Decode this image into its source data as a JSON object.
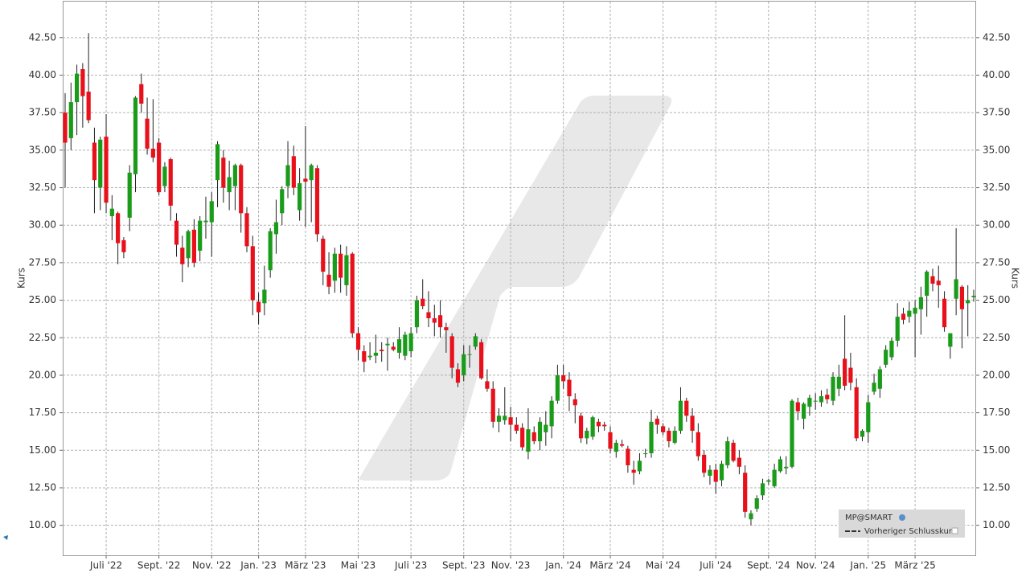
{
  "chart_data": {
    "type": "candlestick",
    "y_label": "Kurs",
    "ylim": [
      8,
      44.9
    ],
    "yticks": [
      {
        "value": 10,
        "label": "10.00"
      },
      {
        "value": 12.5,
        "label": "12.50"
      },
      {
        "value": 15,
        "label": "15.00"
      },
      {
        "value": 17.5,
        "label": "17.50"
      },
      {
        "value": 20,
        "label": "20.00"
      },
      {
        "value": 22.5,
        "label": "22.50"
      },
      {
        "value": 25,
        "label": "25.00"
      },
      {
        "value": 27.5,
        "label": "27.50"
      },
      {
        "value": 30,
        "label": "30.00"
      },
      {
        "value": 32.5,
        "label": "32.50"
      },
      {
        "value": 35,
        "label": "35.00"
      },
      {
        "value": 37.5,
        "label": "37.50"
      },
      {
        "value": 40,
        "label": "40.00"
      },
      {
        "value": 42.5,
        "label": "42.50"
      }
    ],
    "grid": true,
    "up_color": "#1a9c1a",
    "down_color": "#e8111b",
    "legend": {
      "position": "lower right",
      "entries": [
        "MP@SMART",
        "Vorheriger Schlusskurs"
      ]
    },
    "categories": [
      null,
      null,
      null,
      null,
      null,
      null,
      null,
      "Juli '22",
      null,
      null,
      null,
      null,
      null,
      null,
      null,
      null,
      "Sept. '22",
      null,
      null,
      null,
      null,
      null,
      null,
      null,
      null,
      "Nov. '22",
      null,
      null,
      null,
      null,
      null,
      null,
      null,
      "Jan. '23",
      null,
      null,
      null,
      null,
      null,
      null,
      null,
      "März '23",
      null,
      null,
      null,
      null,
      null,
      null,
      null,
      null,
      "Mai '23",
      null,
      null,
      null,
      null,
      null,
      null,
      null,
      null,
      "Juli '23",
      null,
      null,
      null,
      null,
      null,
      null,
      null,
      null,
      "Sept. '23",
      null,
      null,
      null,
      null,
      null,
      null,
      null,
      "Nov. '23",
      null,
      null,
      null,
      null,
      null,
      null,
      null,
      null,
      "Jan. '24",
      null,
      null,
      null,
      null,
      null,
      null,
      null,
      "März '24",
      null,
      null,
      null,
      null,
      null,
      null,
      null,
      null,
      "Mai '24",
      null,
      null,
      null,
      null,
      null,
      null,
      null,
      null,
      "Juli '24",
      null,
      null,
      null,
      null,
      null,
      null,
      null,
      null,
      "Sept. '24",
      null,
      null,
      null,
      null,
      null,
      null,
      null,
      "Nov. '24",
      null,
      null,
      null,
      null,
      null,
      null,
      null,
      null,
      "Jan. '25",
      null,
      null,
      null,
      null,
      null,
      null,
      null,
      "März '25",
      null,
      null,
      null,
      null,
      null,
      null,
      null,
      null,
      null,
      null
    ],
    "ohlc": [
      [
        37.5,
        38.8,
        32.5,
        35.5
      ],
      [
        35.8,
        39.5,
        35,
        38.2
      ],
      [
        38.2,
        40.7,
        36,
        40.1
      ],
      [
        40.4,
        40.8,
        36.5,
        38.6
      ],
      [
        38.9,
        42.8,
        36.8,
        37
      ],
      [
        35.5,
        36.5,
        30.8,
        33
      ],
      [
        32.5,
        35.9,
        31,
        35.7
      ],
      [
        35.9,
        37.4,
        30.8,
        31.5
      ],
      [
        30.6,
        32,
        29,
        31.1
      ],
      [
        30.8,
        30.9,
        27.4,
        28.8
      ],
      [
        29,
        29.2,
        27.8,
        28.2
      ],
      [
        30.5,
        34,
        29.6,
        33.5
      ],
      [
        33.4,
        38.6,
        32.2,
        38.5
      ],
      [
        39.4,
        40.1,
        37.5,
        38.1
      ],
      [
        37.1,
        38.5,
        34.7,
        35.1
      ],
      [
        35.1,
        38.4,
        34.2,
        34.5
      ],
      [
        35.5,
        35.8,
        32,
        32.2
      ],
      [
        32.6,
        34.2,
        32.2,
        33.9
      ],
      [
        34.4,
        34.5,
        30.3,
        31.3
      ],
      [
        30.3,
        30.8,
        27.9,
        28.7
      ],
      [
        28.5,
        29.3,
        26.2,
        27.4
      ],
      [
        27.8,
        29.7,
        27.2,
        29.6
      ],
      [
        29.7,
        30.4,
        27.2,
        27.5
      ],
      [
        28.3,
        30.6,
        27.6,
        30.3
      ],
      [
        30.2,
        31.9,
        29.1,
        30.3
      ],
      [
        30.2,
        32.2,
        27.9,
        31.6
      ],
      [
        33,
        35.6,
        31.2,
        35.4
      ],
      [
        34.5,
        35,
        31.5,
        32.5
      ],
      [
        32.2,
        34.3,
        31,
        33.2
      ],
      [
        32.6,
        34.1,
        31,
        34
      ],
      [
        34,
        34.1,
        29.5,
        30.8
      ],
      [
        30.8,
        31.2,
        28.2,
        28.6
      ],
      [
        28.6,
        29.3,
        24,
        25
      ],
      [
        24.9,
        25.5,
        23.4,
        24.2
      ],
      [
        24.8,
        27.3,
        24,
        25.7
      ],
      [
        27,
        29.8,
        26.5,
        29.6
      ],
      [
        29.4,
        31.7,
        28.1,
        30.2
      ],
      [
        30.8,
        32.6,
        30,
        32.4
      ],
      [
        32.6,
        35.6,
        31.8,
        34
      ],
      [
        34.6,
        35.3,
        32,
        32.5
      ],
      [
        31,
        33.8,
        30.3,
        32.8
      ],
      [
        33.1,
        36.6,
        29.9,
        32.9
      ],
      [
        33,
        34.1,
        30.2,
        34
      ],
      [
        33.8,
        34,
        28.9,
        29.4
      ],
      [
        29.1,
        29.3,
        26,
        26.9
      ],
      [
        26.7,
        28.2,
        25.4,
        25.9
      ],
      [
        26.3,
        28.5,
        25.5,
        28.1
      ],
      [
        28.1,
        28.7,
        25.5,
        26.5
      ],
      [
        26,
        28.6,
        25.3,
        28
      ],
      [
        28.1,
        28.2,
        22.5,
        22.8
      ],
      [
        22.8,
        23.2,
        21,
        21.7
      ],
      [
        21.6,
        22,
        20.2,
        20.9
      ],
      [
        21.2,
        22.2,
        21,
        21.3
      ],
      [
        21.3,
        22.7,
        20.8,
        21.5
      ],
      [
        21.7,
        22.2,
        20.9,
        21.6
      ],
      [
        22,
        22.5,
        20.3,
        22.1
      ],
      [
        21.9,
        22.2,
        21.6,
        21.7
      ],
      [
        21.5,
        23.2,
        21.1,
        22.4
      ],
      [
        21.3,
        22.9,
        21,
        22.7
      ],
      [
        21.6,
        23.2,
        21.2,
        22.8
      ],
      [
        23.2,
        25.3,
        22.8,
        25
      ],
      [
        25.1,
        26.4,
        24.4,
        24.6
      ],
      [
        24.2,
        25.6,
        23.2,
        23.8
      ],
      [
        23.8,
        24.7,
        22.6,
        23.5
      ],
      [
        24,
        25,
        22.5,
        23.2
      ],
      [
        23.2,
        23.5,
        21.5,
        23
      ],
      [
        22.6,
        22.8,
        19.8,
        20.5
      ],
      [
        20.4,
        20.8,
        19.2,
        19.5
      ],
      [
        20,
        22,
        19.6,
        21.4
      ],
      [
        21.4,
        22,
        20.5,
        21.4
      ],
      [
        21.9,
        22.8,
        21.7,
        22.6
      ],
      [
        22.2,
        22.4,
        19.7,
        19.8
      ],
      [
        19.6,
        20.4,
        18.9,
        19.1
      ],
      [
        19.1,
        19.6,
        16.5,
        16.9
      ],
      [
        16.9,
        17.8,
        16.2,
        17.3
      ],
      [
        17,
        19.2,
        16.7,
        17.3
      ],
      [
        17.2,
        17.9,
        15.6,
        16.7
      ],
      [
        16.7,
        17.2,
        16.1,
        16.3
      ],
      [
        16.5,
        16.8,
        15,
        15.2
      ],
      [
        14.9,
        17.8,
        14.4,
        16.4
      ],
      [
        16.2,
        16.6,
        15.4,
        15.6
      ],
      [
        15.6,
        17.2,
        15,
        16.9
      ],
      [
        16.2,
        17.6,
        15.3,
        16.7
      ],
      [
        16.6,
        18.6,
        15.8,
        18.3
      ],
      [
        18.3,
        20.7,
        18.1,
        20
      ],
      [
        20,
        20.7,
        19.1,
        19.6
      ],
      [
        19.7,
        20.2,
        17.6,
        18.6
      ],
      [
        18.4,
        18.8,
        16.8,
        18
      ],
      [
        17.3,
        17.5,
        15.5,
        15.8
      ],
      [
        15.8,
        16.5,
        15.4,
        16.3
      ],
      [
        15.9,
        17.3,
        15.7,
        17.2
      ],
      [
        16.9,
        17.1,
        16.2,
        16.6
      ],
      [
        16.7,
        16.9,
        16.3,
        16.6
      ],
      [
        16.2,
        16.6,
        14.8,
        15.1
      ],
      [
        14.9,
        15.7,
        14.5,
        15.5
      ],
      [
        15.4,
        15.7,
        15.2,
        15.3
      ],
      [
        15.1,
        15.3,
        13.5,
        14
      ],
      [
        13.7,
        14.3,
        12.7,
        13.5
      ],
      [
        13.6,
        14.8,
        13.4,
        14.3
      ],
      [
        14.8,
        15.1,
        14.5,
        14.8
      ],
      [
        14.8,
        17.7,
        14.5,
        16.9
      ],
      [
        17.1,
        17.3,
        16.1,
        16.7
      ],
      [
        16.6,
        16.8,
        16,
        16.2
      ],
      [
        16.3,
        16.5,
        15.2,
        15.6
      ],
      [
        15.5,
        16.6,
        15.4,
        16.3
      ],
      [
        16.3,
        19.2,
        16.1,
        18.3
      ],
      [
        18.3,
        18.5,
        16.9,
        17.3
      ],
      [
        17.3,
        17.8,
        15.5,
        16.3
      ],
      [
        16.2,
        16.8,
        14.3,
        14.6
      ],
      [
        14.7,
        15,
        13.2,
        13.5
      ],
      [
        13.3,
        14,
        12.7,
        13.7
      ],
      [
        13.7,
        14.1,
        12.1,
        12.9
      ],
      [
        13,
        14.3,
        12.6,
        14.1
      ],
      [
        14,
        15.9,
        13.8,
        15.6
      ],
      [
        15.5,
        15.7,
        14.2,
        14.3
      ],
      [
        14.5,
        15,
        13.4,
        13.9
      ],
      [
        13.5,
        14,
        10.5,
        10.9
      ],
      [
        10.4,
        11,
        10,
        10.8
      ],
      [
        11.1,
        12,
        10.9,
        11.8
      ],
      [
        12,
        13.1,
        11.7,
        12.8
      ],
      [
        12.9,
        13.1,
        12.7,
        13
      ],
      [
        12.6,
        14.1,
        12.5,
        13.7
      ],
      [
        13.6,
        14.6,
        13.5,
        14.4
      ],
      [
        13.8,
        14.6,
        13.4,
        13.9
      ],
      [
        13.9,
        18.4,
        13.8,
        18.3
      ],
      [
        18.2,
        18.5,
        17,
        17.6
      ],
      [
        17.1,
        18.2,
        16.4,
        18.1
      ],
      [
        17.9,
        18.7,
        17.3,
        18.5
      ],
      [
        18.3,
        18.8,
        17.7,
        18.3
      ],
      [
        18.2,
        19,
        17.9,
        18.6
      ],
      [
        18.7,
        19.1,
        18.1,
        18.4
      ],
      [
        18.3,
        20.2,
        18,
        19.9
      ],
      [
        19.1,
        20.7,
        18.6,
        19.9
      ],
      [
        21.1,
        24,
        19,
        19.3
      ],
      [
        20.5,
        21.5,
        19,
        19.5
      ],
      [
        19.2,
        19.8,
        15.6,
        15.8
      ],
      [
        15.9,
        16.4,
        15.6,
        16.3
      ],
      [
        16.2,
        18.7,
        15.5,
        18.2
      ],
      [
        18.9,
        20.1,
        18.7,
        19.5
      ],
      [
        19.1,
        20.6,
        18.5,
        20.4
      ],
      [
        20.7,
        22,
        20.5,
        21.7
      ],
      [
        21.2,
        22.5,
        21,
        22.3
      ],
      [
        22.3,
        24.8,
        21.9,
        23.9
      ],
      [
        24.1,
        24.5,
        23.4,
        23.7
      ],
      [
        23.9,
        24.9,
        23.5,
        24.3
      ],
      [
        24.1,
        25,
        21.2,
        24.5
      ],
      [
        24.4,
        25.9,
        22.7,
        25.2
      ],
      [
        25.3,
        27,
        23.9,
        26.9
      ],
      [
        26.6,
        27.1,
        25.6,
        26.1
      ],
      [
        26.3,
        27.3,
        24.5,
        26
      ],
      [
        25.1,
        25.6,
        22.9,
        23.2
      ],
      [
        21.9,
        22.7,
        21.1,
        22.8
      ],
      [
        25.1,
        29.8,
        24,
        26.4
      ],
      [
        25.9,
        26,
        21.8,
        24.4
      ],
      [
        24.8,
        26,
        22.6,
        25
      ],
      [
        25.2,
        25.7,
        24.9,
        25.3
      ]
    ]
  }
}
